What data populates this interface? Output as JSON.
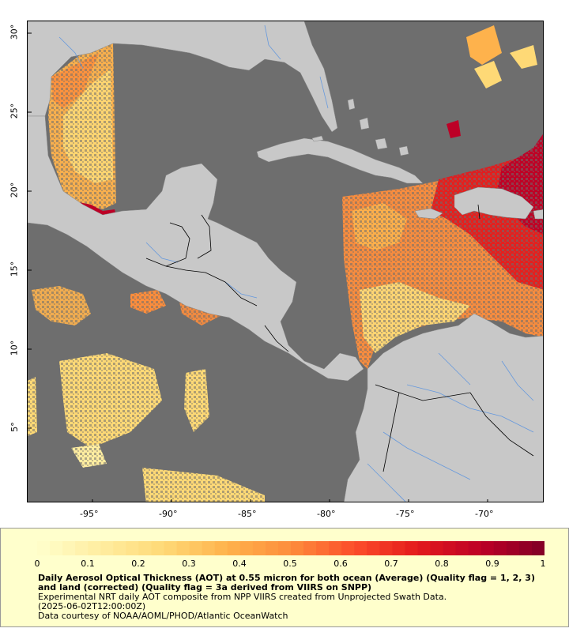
{
  "map": {
    "lon_ticks": [
      "-95°",
      "-90°",
      "-85°",
      "-80°",
      "-75°",
      "-70°"
    ],
    "lon_values": [
      -95,
      -90,
      -85,
      -80,
      -75,
      -70
    ],
    "lat_ticks": [
      "30°",
      "25°",
      "20°",
      "15°",
      "10°",
      "5°"
    ],
    "lat_values": [
      30,
      25,
      20,
      15,
      10,
      5
    ],
    "lon_range": [
      -99.1,
      -66.4
    ],
    "lat_range": [
      0.7,
      31.2
    ],
    "colors": {
      "ocean": "#6e6e6e",
      "land": "#c8c8c8",
      "border": "#000000",
      "river": "#6699dd"
    }
  },
  "legend": {
    "colorbar_labels": [
      "0",
      "0.1",
      "0.2",
      "0.3",
      "0.4",
      "0.5",
      "0.6",
      "0.7",
      "0.8",
      "0.9",
      "1"
    ],
    "colorbar_colors": [
      "#ffffcc",
      "#ffeda0",
      "#fed976",
      "#feb24c",
      "#fd8d3c",
      "#fc4e2a",
      "#e31a1c",
      "#bd0026",
      "#800026"
    ],
    "title": "Daily Aerosol Optical Thickness (AOT) at 0.55 micron for both ocean (Average) (Quality flag = 1, 2, 3) and land (corrected) (Quality flag = 3a derived from VIIRS on SNPP)",
    "subtitle": "Experimental NRT daily AOT composite from NPP VIIRS created from Unprojected Swath Data.",
    "date": "(2025-06-02T12:00:00Z)",
    "credit": "Data courtesy of NOAA/AOML/PHOD/Atlantic OceanWatch"
  }
}
